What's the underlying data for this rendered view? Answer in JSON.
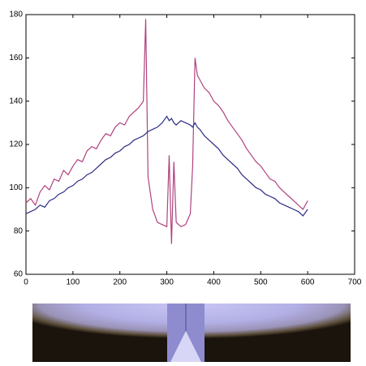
{
  "chart_data": {
    "type": "line",
    "x": [
      0,
      10,
      20,
      30,
      40,
      50,
      60,
      70,
      80,
      90,
      100,
      110,
      120,
      130,
      140,
      150,
      160,
      170,
      180,
      190,
      200,
      210,
      220,
      230,
      240,
      250,
      255,
      260,
      270,
      280,
      290,
      300,
      305,
      310,
      315,
      320,
      330,
      340,
      350,
      355,
      360,
      365,
      370,
      380,
      390,
      400,
      410,
      420,
      430,
      440,
      450,
      460,
      470,
      480,
      490,
      500,
      510,
      520,
      530,
      540,
      550,
      560,
      570,
      580,
      590,
      600
    ],
    "series": [
      {
        "color": "#b0437f",
        "values": [
          93,
          95,
          92,
          98,
          101,
          99,
          104,
          103,
          108,
          106,
          110,
          113,
          112,
          117,
          119,
          118,
          122,
          125,
          124,
          128,
          130,
          129,
          133,
          135,
          137,
          140,
          178,
          105,
          90,
          84,
          83,
          82,
          115,
          74,
          112,
          84,
          82,
          83,
          88,
          110,
          160,
          152,
          150,
          146,
          144,
          140,
          138,
          135,
          131,
          128,
          125,
          122,
          118,
          115,
          112,
          110,
          107,
          104,
          103,
          100,
          98,
          96,
          94,
          92,
          90,
          94
        ]
      },
      {
        "color": "#2b2b86",
        "values": [
          88,
          89,
          90,
          92,
          91,
          94,
          95,
          97,
          98,
          100,
          101,
          103,
          104,
          106,
          107,
          109,
          111,
          113,
          114,
          116,
          117,
          119,
          120,
          122,
          123,
          124,
          125,
          126,
          127,
          128,
          130,
          133,
          131,
          132,
          130,
          129,
          131,
          130,
          129,
          128,
          130,
          128,
          127,
          124,
          122,
          120,
          118,
          115,
          113,
          111,
          109,
          106,
          104,
          102,
          100,
          99,
          97,
          96,
          95,
          93,
          92,
          91,
          90,
          89,
          87,
          90
        ]
      }
    ],
    "xlim": [
      0,
      700
    ],
    "xticks": [
      0,
      100,
      200,
      300,
      400,
      500,
      600,
      700
    ],
    "ylim": [
      60,
      180
    ],
    "yticks": [
      60,
      80,
      100,
      120,
      140,
      160,
      180
    ]
  }
}
